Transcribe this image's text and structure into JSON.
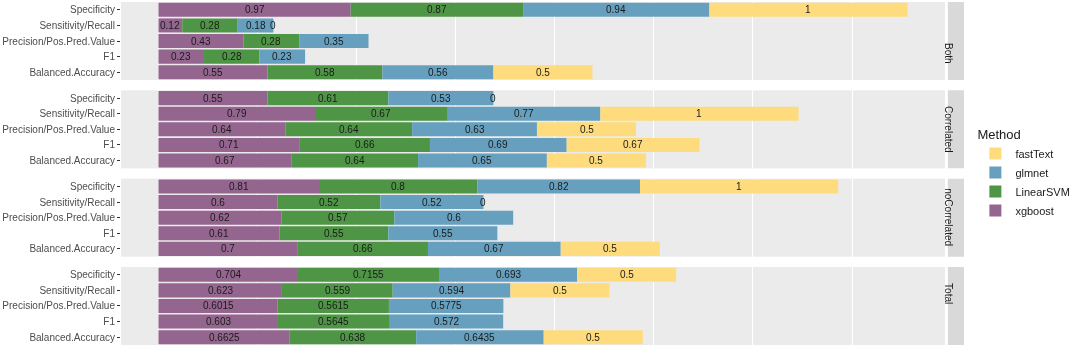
{
  "chart_data": [
    {
      "type": "bar",
      "orientation": "horizontal",
      "stacked": true,
      "title": "Both",
      "legend": "right",
      "legend_title": "Method",
      "grid": "x",
      "tick_labels": "y",
      "data_labels": true,
      "xlim": [
        -0.189,
        3.969
      ],
      "xticks": [
        {
          "value": 0,
          "label": null
        },
        {
          "value": 0.5,
          "label": null
        },
        {
          "value": 1,
          "label": null
        },
        {
          "value": 1.5,
          "label": null
        },
        {
          "value": 2,
          "label": null
        },
        {
          "value": 2.5,
          "label": null
        },
        {
          "value": 3,
          "label": null
        },
        {
          "value": 3.5,
          "label": null
        }
      ],
      "categories": [
        "Specificity",
        "Sensitivity/Recall",
        "Precision/Pos.Pred.Value",
        "F1",
        "Balanced.Accuracy"
      ],
      "series": [
        {
          "name": "xgboost",
          "color": "#94668f",
          "values": [
            0.97,
            0.12,
            0.43,
            0.23,
            0.55
          ]
        },
        {
          "name": "LinearSVM",
          "color": "#4f9546",
          "values": [
            0.87,
            0.28,
            0.28,
            0.28,
            0.58
          ]
        },
        {
          "name": "glmnet",
          "color": "#67a0bf",
          "values": [
            0.94,
            0.18,
            0.35,
            0.23,
            0.56
          ]
        },
        {
          "name": "fastText",
          "color": "#fedb7d",
          "values": [
            1,
            0,
            null,
            null,
            0.5
          ]
        }
      ]
    },
    {
      "type": "bar",
      "orientation": "horizontal",
      "stacked": true,
      "title": "Correlated",
      "grid": "x",
      "tick_labels": "y",
      "data_labels": true,
      "xlim": [
        -0.189,
        3.969
      ],
      "xticks": [
        {
          "value": 0,
          "label": null
        },
        {
          "value": 0.5,
          "label": null
        },
        {
          "value": 1,
          "label": null
        },
        {
          "value": 1.5,
          "label": null
        },
        {
          "value": 2,
          "label": null
        },
        {
          "value": 2.5,
          "label": null
        },
        {
          "value": 3,
          "label": null
        },
        {
          "value": 3.5,
          "label": null
        }
      ],
      "categories": [
        "Specificity",
        "Sensitivity/Recall",
        "Precision/Pos.Pred.Value",
        "F1",
        "Balanced.Accuracy"
      ],
      "series": [
        {
          "color": "#94668f",
          "values": [
            0.55,
            0.79,
            0.64,
            0.71,
            0.67
          ]
        },
        {
          "color": "#4f9546",
          "values": [
            0.61,
            0.67,
            0.64,
            0.66,
            0.64
          ]
        },
        {
          "color": "#67a0bf",
          "values": [
            0.53,
            0.77,
            0.63,
            0.69,
            0.65
          ]
        },
        {
          "color": "#fedb7d",
          "values": [
            0,
            1,
            0.5,
            0.67,
            0.5
          ]
        }
      ]
    },
    {
      "type": "bar",
      "orientation": "horizontal",
      "stacked": true,
      "title": "noCorrelated",
      "grid": "x",
      "tick_labels": "y",
      "data_labels": true,
      "xlim": [
        -0.189,
        3.969
      ],
      "xticks": [
        {
          "value": 0,
          "label": null
        },
        {
          "value": 0.5,
          "label": null
        },
        {
          "value": 1,
          "label": null
        },
        {
          "value": 1.5,
          "label": null
        },
        {
          "value": 2,
          "label": null
        },
        {
          "value": 2.5,
          "label": null
        },
        {
          "value": 3,
          "label": null
        },
        {
          "value": 3.5,
          "label": null
        }
      ],
      "categories": [
        "Specificity",
        "Sensitivity/Recall",
        "Precision/Pos.Pred.Value",
        "F1",
        "Balanced.Accuracy"
      ],
      "series": [
        {
          "color": "#94668f",
          "values": [
            0.81,
            0.6,
            0.62,
            0.61,
            0.7
          ]
        },
        {
          "color": "#4f9546",
          "values": [
            0.8,
            0.52,
            0.57,
            0.55,
            0.66
          ]
        },
        {
          "color": "#67a0bf",
          "values": [
            0.82,
            0.52,
            0.6,
            0.55,
            0.67
          ]
        },
        {
          "color": "#fedb7d",
          "values": [
            1,
            0,
            null,
            null,
            0.5
          ]
        }
      ]
    },
    {
      "type": "bar",
      "orientation": "horizontal",
      "stacked": true,
      "title": "Total",
      "grid": "x",
      "tick_labels": "y",
      "data_labels": true,
      "xlim": [
        -0.189,
        3.969
      ],
      "xticks": [
        {
          "value": 0,
          "label": null
        },
        {
          "value": 0.5,
          "label": null
        },
        {
          "value": 1,
          "label": null
        },
        {
          "value": 1.5,
          "label": null
        },
        {
          "value": 2,
          "label": null
        },
        {
          "value": 2.5,
          "label": null
        },
        {
          "value": 3,
          "label": null
        },
        {
          "value": 3.5,
          "label": null
        }
      ],
      "categories": [
        "Specificity",
        "Sensitivity/Recall",
        "Precision/Pos.Pred.Value",
        "F1",
        "Balanced.Accuracy"
      ],
      "series": [
        {
          "color": "#94668f",
          "values": [
            0.704,
            0.623,
            0.6015,
            0.603,
            0.6625
          ]
        },
        {
          "color": "#4f9546",
          "values": [
            0.7155,
            0.559,
            0.5615,
            0.5645,
            0.638
          ]
        },
        {
          "color": "#67a0bf",
          "values": [
            0.693,
            0.594,
            0.5775,
            0.572,
            0.6435
          ]
        },
        {
          "color": "#fedb7d",
          "values": [
            0.5,
            0.5,
            null,
            null,
            0.5
          ]
        }
      ]
    }
  ]
}
